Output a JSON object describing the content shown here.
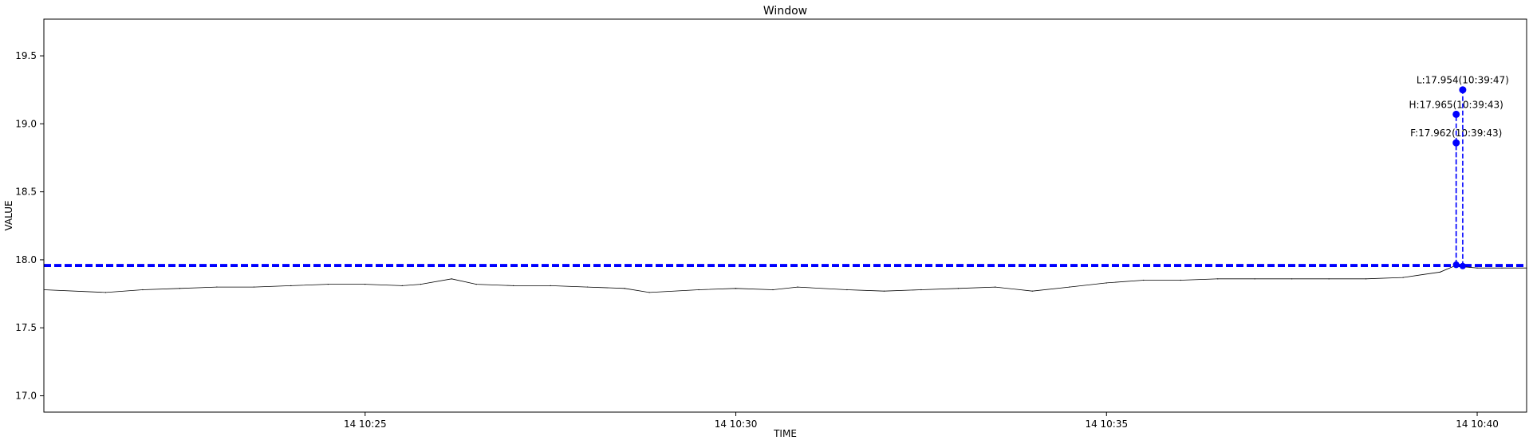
{
  "chart_data": {
    "type": "line",
    "title": "Window",
    "xlabel": "TIME",
    "ylabel": "VALUE",
    "xlim": [
      "14 10:20:40",
      "14 10:40:40"
    ],
    "ylim": [
      16.88,
      19.77
    ],
    "x_ticks": [
      "14 10:25",
      "14 10:30",
      "14 10:35",
      "14 10:40"
    ],
    "y_ticks": [
      "17.0",
      "17.5",
      "18.0",
      "18.5",
      "19.0",
      "19.5"
    ],
    "grid": false,
    "legend": "none",
    "series": [
      {
        "color": "#000000",
        "x": [
          "14 10:20:40",
          "14 10:21:30",
          "14 10:22:00",
          "14 10:22:30",
          "14 10:23:00",
          "14 10:23:30",
          "14 10:24:00",
          "14 10:24:30",
          "14 10:25:00",
          "14 10:25:30",
          "14 10:25:45",
          "14 10:26:10",
          "14 10:26:30",
          "14 10:27:00",
          "14 10:27:30",
          "14 10:28:00",
          "14 10:28:30",
          "14 10:28:50",
          "14 10:29:30",
          "14 10:30:00",
          "14 10:30:30",
          "14 10:30:50",
          "14 10:31:30",
          "14 10:32:00",
          "14 10:32:30",
          "14 10:33:00",
          "14 10:33:30",
          "14 10:34:00",
          "14 10:34:30",
          "14 10:35:00",
          "14 10:35:30",
          "14 10:36:00",
          "14 10:36:30",
          "14 10:37:00",
          "14 10:37:30",
          "14 10:38:00",
          "14 10:38:30",
          "14 10:39:00",
          "14 10:39:30",
          "14 10:39:43",
          "14 10:39:47",
          "14 10:40:00",
          "14 10:40:20",
          "14 10:40:40"
        ],
        "y": [
          17.78,
          17.76,
          17.78,
          17.79,
          17.8,
          17.8,
          17.81,
          17.82,
          17.82,
          17.81,
          17.82,
          17.86,
          17.82,
          17.81,
          17.81,
          17.8,
          17.79,
          17.76,
          17.78,
          17.79,
          17.78,
          17.8,
          17.78,
          17.77,
          17.78,
          17.79,
          17.8,
          17.77,
          17.8,
          17.83,
          17.85,
          17.85,
          17.86,
          17.86,
          17.86,
          17.86,
          17.86,
          17.87,
          17.91,
          17.96,
          17.95,
          17.94,
          17.94,
          17.94
        ]
      }
    ],
    "reference_lines": [
      {
        "kind": "horizontal",
        "y": 17.962,
        "color": "#0000ff",
        "style": "dashed"
      },
      {
        "kind": "horizontal",
        "y": 17.954,
        "color": "#0000ff",
        "style": "dashed"
      }
    ],
    "markers": [
      {
        "label": "F:17.962(10:39:43)",
        "x": "14 10:39:43",
        "y": 17.962,
        "marker_y": 18.86,
        "color": "#0000ff"
      },
      {
        "label": "H:17.965(10:39:43)",
        "x": "14 10:39:43",
        "y": 17.965,
        "marker_y": 19.07,
        "color": "#0000ff"
      },
      {
        "label": "L:17.954(10:39:47)",
        "x": "14 10:39:47",
        "y": 17.954,
        "marker_y": 19.25,
        "color": "#0000ff"
      }
    ]
  }
}
